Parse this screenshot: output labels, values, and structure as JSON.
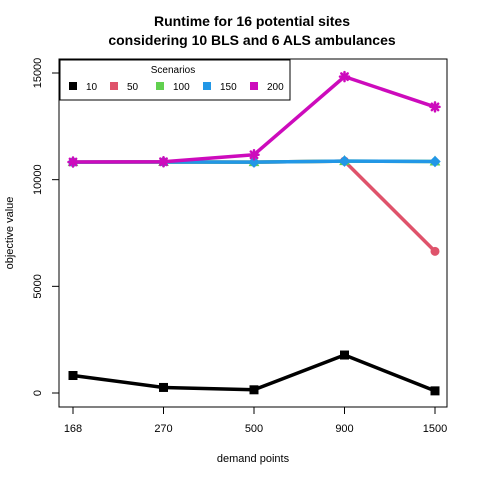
{
  "chart_data": {
    "type": "line",
    "title": [
      "Runtime for 16 potential sites",
      "considering 10 BLS and 6 ALS ambulances"
    ],
    "xlabel": "demand points",
    "ylabel": "objective value",
    "categories": [
      "168",
      "270",
      "500",
      "900",
      "1500"
    ],
    "yticks": [
      0,
      5000,
      10000,
      15000
    ],
    "ylim": [
      -300,
      15500
    ],
    "grid": false,
    "legend": {
      "title": "Scenarios",
      "position": "top-left",
      "horizontal": true
    },
    "series": [
      {
        "name": "10",
        "color": "#000000",
        "marker": "square",
        "values": [
          820,
          260,
          150,
          1780,
          100
        ]
      },
      {
        "name": "50",
        "color": "#DF536B",
        "marker": "circle",
        "values": [
          10820,
          10830,
          10820,
          10870,
          6640
        ]
      },
      {
        "name": "100",
        "color": "#61D04F",
        "marker": "triangle",
        "values": [
          10820,
          10830,
          10820,
          10870,
          10850
        ]
      },
      {
        "name": "150",
        "color": "#2297E6",
        "marker": "diamond",
        "values": [
          10820,
          10830,
          10820,
          10870,
          10850
        ]
      },
      {
        "name": "200",
        "color": "#CD0BBC",
        "marker": "star",
        "values": [
          10830,
          10840,
          11170,
          14830,
          13410
        ]
      }
    ]
  }
}
